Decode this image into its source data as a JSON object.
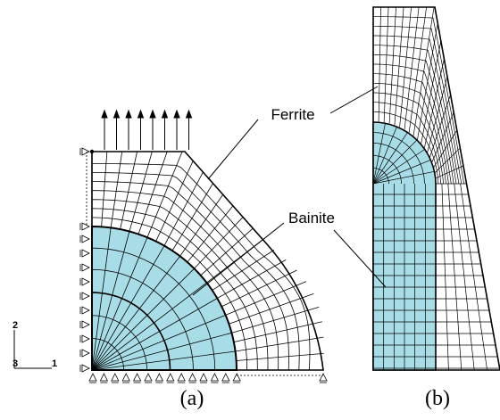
{
  "labels": {
    "ferrite": "Ferrite",
    "bainite": "Bainite",
    "caption_a": "(a)",
    "caption_b": "(b)"
  },
  "axes": {
    "x": "1",
    "y": "2",
    "z": "3"
  },
  "colors": {
    "bainite_fill": "#a8dde8",
    "mesh_line": "#000000",
    "background": "#ffffff"
  },
  "panels": [
    {
      "id": "a",
      "description_label": "caption_a"
    },
    {
      "id": "b",
      "description_label": "caption_b"
    }
  ]
}
